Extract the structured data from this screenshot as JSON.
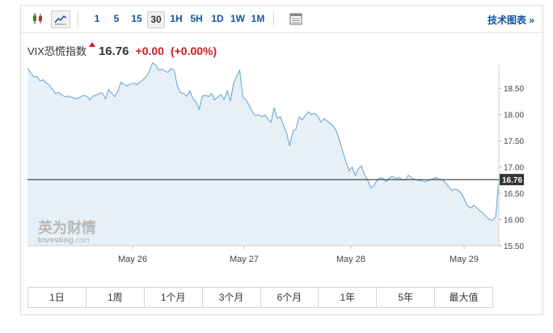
{
  "toolbar": {
    "intervals": [
      "1",
      "5",
      "15",
      "30",
      "1H",
      "5H",
      "1D",
      "1W",
      "1M"
    ],
    "active_interval": "30",
    "tech_chart_link": "技术图表 »"
  },
  "quote": {
    "name": "VIX恐慌指数",
    "last": "16.76",
    "change": "+0.00",
    "change_pct": "(+0.00%)",
    "up_color": "#d71920"
  },
  "watermark": {
    "brand_cn": "英为财情",
    "brand_en": "Investing",
    "brand_suffix": ".com"
  },
  "chart_data": {
    "type": "area",
    "y_ticks": [
      "18.50",
      "18.00",
      "17.50",
      "17.00",
      "16.50",
      "16.00",
      "15.50"
    ],
    "x_ticks": [
      "May 26",
      "May 27",
      "May 28",
      "May 29"
    ],
    "ylim": [
      15.5,
      18.95
    ],
    "current_value": 16.76,
    "current_label": "16.76",
    "line_color": "#6fa8d6",
    "fill_color": "#e8f0f7",
    "values": [
      18.88,
      18.8,
      18.72,
      18.73,
      18.64,
      18.66,
      18.6,
      18.56,
      18.48,
      18.4,
      18.42,
      18.37,
      18.34,
      18.35,
      18.33,
      18.31,
      18.3,
      18.34,
      18.36,
      18.35,
      18.28,
      18.35,
      18.37,
      18.4,
      18.41,
      18.3,
      18.48,
      18.4,
      18.34,
      18.46,
      18.62,
      18.57,
      18.55,
      18.58,
      18.6,
      18.57,
      18.62,
      18.66,
      18.72,
      18.81,
      18.98,
      18.95,
      18.85,
      18.86,
      18.83,
      18.8,
      18.88,
      18.84,
      18.54,
      18.42,
      18.4,
      18.35,
      18.45,
      18.3,
      18.24,
      18.1,
      18.35,
      18.37,
      18.34,
      18.4,
      18.28,
      18.33,
      18.38,
      18.28,
      18.45,
      18.25,
      18.59,
      18.73,
      18.84,
      18.33,
      18.28,
      18.18,
      18.05,
      17.98,
      18.0,
      17.96,
      17.99,
      17.92,
      17.85,
      18.12,
      17.93,
      17.96,
      17.8,
      17.65,
      17.4,
      17.68,
      17.72,
      17.95,
      17.9,
      17.98,
      18.05,
      18.0,
      18.02,
      17.97,
      17.85,
      17.92,
      17.88,
      17.83,
      17.78,
      17.68,
      17.5,
      17.3,
      17.1,
      16.93,
      17.0,
      16.84,
      16.97,
      17.02,
      16.85,
      16.75,
      16.6,
      16.65,
      16.75,
      16.8,
      16.78,
      16.72,
      16.8,
      16.82,
      16.78,
      16.8,
      16.76,
      16.75,
      16.84,
      16.8,
      16.76,
      16.75,
      16.74,
      16.72,
      16.73,
      16.75,
      16.78,
      16.8,
      16.76,
      16.75,
      16.7,
      16.62,
      16.55,
      16.58,
      16.56,
      16.5,
      16.38,
      16.25,
      16.22,
      16.27,
      16.22,
      16.16,
      16.12,
      16.05,
      16.0,
      15.98,
      16.05,
      16.76
    ]
  },
  "ranges": [
    "1日",
    "1周",
    "1个月",
    "3个月",
    "6个月",
    "1年",
    "5年",
    "最大值"
  ]
}
